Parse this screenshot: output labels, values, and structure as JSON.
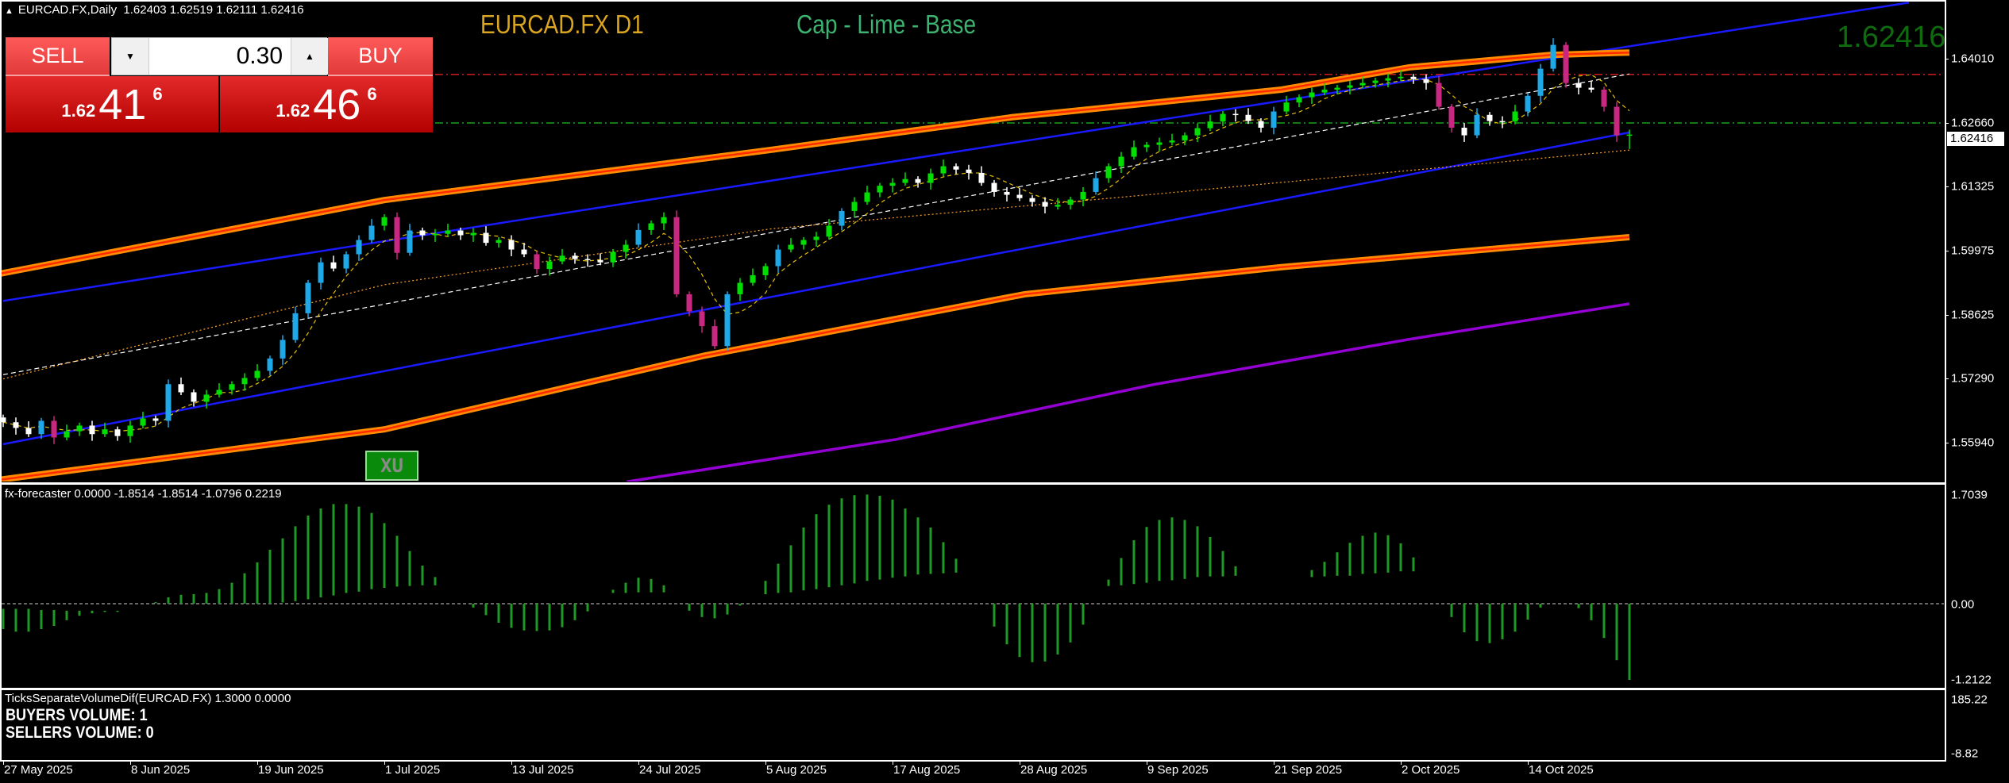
{
  "header": {
    "arrow_icon": "triangle-up-icon",
    "symbol_period": "EURCAD.FX,Daily",
    "ohlc_text": "1.62403 1.62519 1.62111 1.62416"
  },
  "titles": {
    "symbol_tf": "EURCAD.FX D1",
    "symbol_tf_color": "#DAA520",
    "template": "Cap - Lime - Base",
    "template_color": "#3CB371",
    "last_price": "1.62416",
    "last_price_color": "#0E6B0E"
  },
  "trade_panel": {
    "sell_label": "SELL",
    "buy_label": "BUY",
    "lot_value": "0.30",
    "down_icon": "triangle-down-icon",
    "up_icon": "triangle-up-icon",
    "sell_price": {
      "prefix": "1.62",
      "big": "41",
      "sup": "6"
    },
    "buy_price": {
      "prefix": "1.62",
      "big": "46",
      "sup": "6"
    }
  },
  "xu_button": "XU",
  "price_axis": {
    "labels": [
      "1.64010",
      "1.62660",
      "1.61325",
      "1.59975",
      "1.58625",
      "1.57290",
      "1.55940"
    ],
    "current": "1.62416"
  },
  "subwindow1": {
    "label": "fx-forecaster 0.0000 -1.8514 -1.8514 -1.0796 0.2219",
    "axis": [
      "1.7039",
      "0.00",
      "-1.2122"
    ]
  },
  "subwindow2": {
    "label": "TicksSeparateVolumeDif(EURCAD.FX) 1.3000 0.0000",
    "buyers": "BUYERS VOLUME: 1",
    "sellers": "SELLERS VOLUME: 0",
    "axis": [
      "185.22",
      "-8.82"
    ]
  },
  "time_axis": [
    "27 May 2025",
    "8 Jun 2025",
    "19 Jun 2025",
    "1 Jul 2025",
    "13 Jul 2025",
    "24 Jul 2025",
    "5 Aug 2025",
    "17 Aug 2025",
    "28 Aug 2025",
    "9 Sep 2025",
    "21 Sep 2025",
    "2 Oct 2025",
    "14 Oct 2025"
  ],
  "chart_data": [
    {
      "type": "candlestick",
      "symbol": "EURCAD.FX",
      "timeframe": "Daily",
      "last_bar": {
        "open": 1.62403,
        "high": 1.62519,
        "low": 1.62111,
        "close": 1.62416
      },
      "ylim": [
        1.5512,
        1.6524
      ],
      "close": [
        1.5637,
        1.5625,
        1.5612,
        1.564,
        1.5605,
        1.5618,
        1.563,
        1.5612,
        1.5622,
        1.5608,
        1.563,
        1.5645,
        1.564,
        1.5717,
        1.57,
        1.568,
        1.5695,
        1.5705,
        1.5717,
        1.573,
        1.5745,
        1.5771,
        1.581,
        1.5866,
        1.593,
        1.5973,
        1.596,
        1.599,
        1.602,
        1.605,
        1.6068,
        1.5993,
        1.604,
        1.603,
        1.6033,
        1.604,
        1.603,
        1.6035,
        1.6014,
        1.602,
        1.6,
        1.599,
        1.5959,
        1.5975,
        1.5987,
        1.598,
        1.5978,
        1.5973,
        1.5995,
        1.601,
        1.6041,
        1.6055,
        1.6068,
        1.5906,
        1.587,
        1.5839,
        1.5797,
        1.5906,
        1.593,
        1.5946,
        1.5965,
        1.6,
        1.601,
        1.602,
        1.6027,
        1.605,
        1.6081,
        1.61,
        1.612,
        1.6134,
        1.614,
        1.6148,
        1.614,
        1.616,
        1.6175,
        1.6168,
        1.6161,
        1.614,
        1.6121,
        1.6115,
        1.6108,
        1.61,
        1.609,
        1.6094,
        1.6105,
        1.6121,
        1.615,
        1.6175,
        1.6195,
        1.6215,
        1.622,
        1.6225,
        1.6229,
        1.624,
        1.6255,
        1.6269,
        1.6285,
        1.6283,
        1.627,
        1.6256,
        1.629,
        1.6309,
        1.632,
        1.633,
        1.6336,
        1.634,
        1.6345,
        1.635,
        1.6355,
        1.636,
        1.6363,
        1.6358,
        1.635,
        1.63,
        1.6256,
        1.624,
        1.6283,
        1.627,
        1.6269,
        1.629,
        1.6323,
        1.638,
        1.643,
        1.635,
        1.634,
        1.6336,
        1.63,
        1.624,
        1.62416
      ],
      "levels": [
        {
          "price": 1.6368,
          "color": "#E02020",
          "style": "dash-dot"
        },
        {
          "price": 1.6266,
          "color": "#20C020",
          "style": "dash-dot"
        }
      ],
      "indicators": [
        {
          "kind": "channel-upper",
          "color": "#1A1AFF",
          "points": [
            [
              0,
              1.5892
            ],
            [
              150,
              1.6519
            ]
          ]
        },
        {
          "kind": "channel-lower",
          "color": "#1A1AFF",
          "points": [
            [
              0,
              1.5591
            ],
            [
              128,
              1.6246
            ]
          ]
        },
        {
          "kind": "trendline",
          "color": "#FFFFFF",
          "style": "dashed",
          "points": [
            [
              0,
              1.5737
            ],
            [
              128,
              1.6369
            ]
          ]
        },
        {
          "kind": "band-upper",
          "color": "#FF8C00",
          "points": [
            [
              -0.3,
              1.5949
            ],
            [
              30,
              1.6104
            ],
            [
              60.3,
              1.6209
            ],
            [
              79.4,
              1.6278
            ],
            [
              100.6,
              1.6336
            ],
            [
              110.7,
              1.6383
            ],
            [
              121.8,
              1.6409
            ],
            [
              128,
              1.6414
            ]
          ]
        },
        {
          "kind": "band-lower",
          "color": "#FF8C00",
          "points": [
            [
              -0.3,
              1.5516
            ],
            [
              30,
              1.5622
            ],
            [
              55.2,
              1.5777
            ],
            [
              80.4,
              1.5906
            ],
            [
              100.6,
              1.5963
            ],
            [
              128,
              1.6026
            ]
          ]
        },
        {
          "kind": "band-outer",
          "color": "#9400D3",
          "points": [
            [
              49.1,
              1.5512
            ],
            [
              70.3,
              1.5601
            ],
            [
              90.5,
              1.5716
            ],
            [
              110.6,
              1.5811
            ],
            [
              128,
              1.5886
            ]
          ]
        },
        {
          "kind": "moving-average",
          "color": "#FF9F20",
          "style": "dotted",
          "points": [
            [
              0,
              1.5728
            ],
            [
              30,
              1.5926
            ],
            [
              60.3,
              1.6043
            ],
            [
              90.5,
              1.6116
            ],
            [
              128,
              1.6209
            ]
          ]
        }
      ]
    },
    {
      "type": "bar",
      "name": "fx-forecaster",
      "ylim": [
        -1.2122,
        1.7039
      ],
      "color": "#229922",
      "ranges": [
        [
          -0.08,
          -0.4
        ],
        [
          -0.08,
          -0.44
        ],
        [
          -0.08,
          -0.44
        ],
        [
          -0.1,
          -0.4
        ],
        [
          -0.1,
          -0.35
        ],
        [
          -0.11,
          -0.26
        ],
        [
          -0.11,
          -0.19
        ],
        [
          -0.11,
          -0.15
        ],
        [
          -0.11,
          -0.13
        ],
        [
          -0.11,
          -0.12
        ],
        null,
        null,
        [
          0.025,
          0.01
        ],
        [
          0.1,
          0
        ],
        [
          0.14,
          0
        ],
        [
          0.15,
          0
        ],
        [
          0.17,
          0
        ],
        [
          0.23,
          0
        ],
        [
          0.33,
          0
        ],
        [
          0.48,
          0
        ],
        [
          0.65,
          0
        ],
        [
          0.85,
          0
        ],
        [
          1.03,
          0.02
        ],
        [
          1.22,
          0.04
        ],
        [
          1.39,
          0.07
        ],
        [
          1.5,
          0.1
        ],
        [
          1.57,
          0.13
        ],
        [
          1.57,
          0.17
        ],
        [
          1.53,
          0.19
        ],
        [
          1.43,
          0.23
        ],
        [
          1.27,
          0.25
        ],
        [
          1.07,
          0.27
        ],
        [
          0.83,
          0.28
        ],
        [
          0.6,
          0.29
        ],
        [
          0.42,
          0.29
        ],
        null,
        null,
        [
          0,
          -0.06
        ],
        [
          0,
          -0.18
        ],
        [
          0,
          -0.3
        ],
        [
          0,
          -0.38
        ],
        [
          0,
          -0.42
        ],
        [
          0,
          -0.43
        ],
        [
          0,
          -0.42
        ],
        [
          0,
          -0.37
        ],
        [
          0,
          -0.26
        ],
        [
          0,
          -0.12
        ],
        null,
        [
          0.22,
          0.17
        ],
        [
          0.33,
          0.17
        ],
        [
          0.41,
          0.18
        ],
        [
          0.39,
          0.18
        ],
        [
          0.29,
          0.18
        ],
        null,
        [
          0,
          -0.11
        ],
        [
          0,
          -0.21
        ],
        [
          0,
          -0.23
        ],
        [
          0,
          -0.17
        ],
        [
          0,
          -0.03
        ],
        null,
        [
          0.36,
          0.15
        ],
        [
          0.63,
          0.17
        ],
        [
          0.92,
          0.18
        ],
        [
          1.2,
          0.21
        ],
        [
          1.41,
          0.23
        ],
        [
          1.56,
          0.26
        ],
        [
          1.66,
          0.29
        ],
        [
          1.71,
          0.32
        ],
        [
          1.72,
          0.36
        ],
        [
          1.7,
          0.38
        ],
        [
          1.64,
          0.41
        ],
        [
          1.5,
          0.43
        ],
        [
          1.36,
          0.46
        ],
        [
          1.2,
          0.47
        ],
        [
          0.97,
          0.48
        ],
        [
          0.71,
          0.49
        ],
        null,
        null,
        [
          0,
          -0.36
        ],
        [
          0,
          -0.64
        ],
        [
          0,
          -0.84
        ],
        [
          0,
          -0.92
        ],
        [
          0,
          -0.91
        ],
        [
          0,
          -0.8
        ],
        [
          0,
          -0.61
        ],
        [
          0,
          -0.33
        ],
        null,
        [
          0.38,
          0.28
        ],
        [
          0.72,
          0.29
        ],
        [
          1.0,
          0.31
        ],
        [
          1.21,
          0.33
        ],
        [
          1.32,
          0.36
        ],
        [
          1.36,
          0.37
        ],
        [
          1.32,
          0.39
        ],
        [
          1.22,
          0.42
        ],
        [
          1.05,
          0.43
        ],
        [
          0.83,
          0.43
        ],
        [
          0.59,
          0.44
        ],
        null,
        null,
        null,
        null,
        null,
        [
          0.53,
          0.42
        ],
        [
          0.66,
          0.43
        ],
        [
          0.81,
          0.44
        ],
        [
          0.96,
          0.44
        ],
        [
          1.07,
          0.47
        ],
        [
          1.12,
          0.48
        ],
        [
          1.08,
          0.49
        ],
        [
          0.95,
          0.51
        ],
        [
          0.73,
          0.51
        ],
        null,
        null,
        [
          0,
          -0.21
        ],
        [
          0,
          -0.45
        ],
        [
          0,
          -0.59
        ],
        [
          0,
          -0.62
        ],
        [
          0,
          -0.56
        ],
        [
          0,
          -0.44
        ],
        [
          0,
          -0.25
        ],
        [
          0,
          -0.06
        ],
        null,
        null,
        [
          0,
          -0.07
        ],
        [
          0,
          -0.26
        ],
        [
          0,
          -0.54
        ],
        [
          0,
          -0.89
        ],
        [
          0,
          -1.2
        ]
      ]
    }
  ]
}
